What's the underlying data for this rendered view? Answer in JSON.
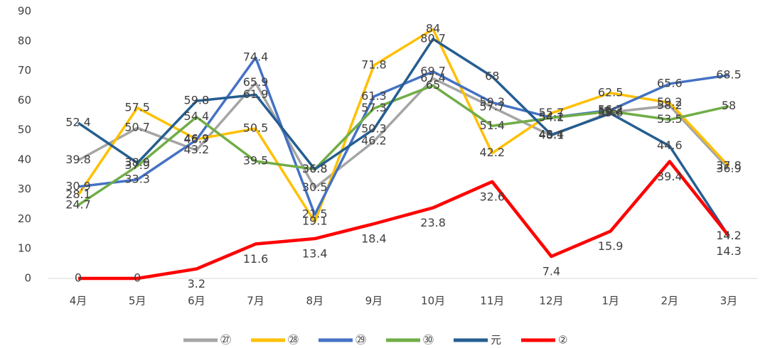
{
  "chart_data": {
    "type": "line",
    "categories": [
      "4月",
      "5月",
      "6月",
      "7月",
      "8月",
      "9月",
      "10月",
      "11月",
      "12月",
      "1月",
      "2月",
      "3月"
    ],
    "ylim": [
      0,
      90
    ],
    "yticks": [
      0,
      10,
      20,
      30,
      40,
      50,
      60,
      70,
      80,
      90
    ],
    "legend": "bottom",
    "series": [
      {
        "name": "㉗",
        "color": "#a5a5a5",
        "values": [
          39.8,
          50.7,
          43.2,
          65.9,
          30.5,
          46.2,
          67.4,
          57.7,
          48.1,
          56,
          58.2,
          36.9
        ]
      },
      {
        "name": "㉘",
        "color": "#ffc000",
        "values": [
          28.1,
          57.5,
          46.9,
          50.5,
          19.1,
          71.8,
          84,
          42.2,
          55.7,
          62.5,
          59.2,
          37.8
        ]
      },
      {
        "name": "㉙",
        "color": "#4472c4",
        "values": [
          30.9,
          33.3,
          46.7,
          74.4,
          21.5,
          61.3,
          69.7,
          59.3,
          54.2,
          56.7,
          65.6,
          68.5
        ]
      },
      {
        "name": "㉚",
        "color": "#70ad47",
        "values": [
          24.7,
          37.9,
          54.4,
          39.5,
          36.8,
          57.3,
          65,
          51.4,
          54.1,
          56.3,
          53.5,
          58
        ]
      },
      {
        "name": "元",
        "color": "#255e91",
        "values": [
          52.4,
          38.9,
          59.8,
          61.9,
          36.8,
          50.3,
          80.7,
          68,
          48.4,
          55.6,
          44.6,
          14.2
        ]
      },
      {
        "name": "②",
        "color": "#ff0000",
        "values": [
          0,
          0,
          3.2,
          11.6,
          13.4,
          18.4,
          23.8,
          32.6,
          7.4,
          15.9,
          39.4,
          14.3
        ]
      }
    ]
  }
}
